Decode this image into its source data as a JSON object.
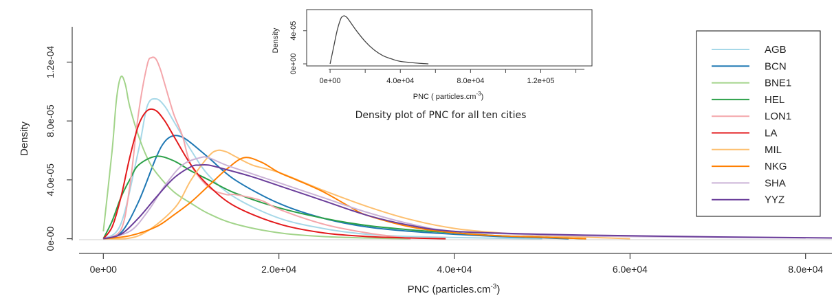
{
  "chart_data": [
    {
      "type": "line",
      "xlabel": "PNC (particles.cm",
      "xlabel_sup": "-3",
      "xlabel_end": ")",
      "ylabel": "Density",
      "xlim": [
        -3000,
        83000
      ],
      "ylim": [
        -1e-05,
        0.000144
      ],
      "xticks": [
        0,
        20000,
        40000,
        60000,
        80000
      ],
      "xtick_labels": [
        "0e+00",
        "2.0e+04",
        "4.0e+04",
        "6.0e+04",
        "8.0e+04"
      ],
      "yticks": [
        0,
        4e-05,
        8e-05,
        0.00012
      ],
      "ytick_labels": [
        "0e-00",
        "4.0e-05",
        "8.0e-05",
        "1.2e-04"
      ],
      "legend_position": "right",
      "series": [
        {
          "name": "AGB",
          "color": "#a6d8e8",
          "x": [
            0,
            2000,
            4000,
            5000,
            6000,
            7000,
            8000,
            10000,
            12000,
            15000,
            20000,
            25000,
            30000,
            35000,
            40000,
            45000,
            50000
          ],
          "values": [
            0,
            1e-05,
            6e-05,
            9e-05,
            9.5e-05,
            9e-05,
            8e-05,
            6e-05,
            4.3e-05,
            2.8e-05,
            1.4e-05,
            7e-06,
            3e-06,
            1.5e-06,
            8e-07,
            3e-07,
            0
          ]
        },
        {
          "name": "BCN",
          "color": "#1f78b4",
          "x": [
            0,
            2000,
            4000,
            6000,
            7000,
            8000,
            9000,
            10000,
            12000,
            15000,
            20000,
            25000,
            30000,
            35000,
            40000,
            45000,
            50000,
            53000
          ],
          "values": [
            0,
            4e-06,
            2.5e-05,
            5.5e-05,
            6.6e-05,
            7e-05,
            6.9e-05,
            6.5e-05,
            5.5e-05,
            4e-05,
            2.4e-05,
            1.4e-05,
            8e-06,
            5e-06,
            3e-06,
            1.5e-06,
            6e-07,
            0
          ]
        },
        {
          "name": "BNE1",
          "color": "#a2d48a",
          "x": [
            0,
            1000,
            1500,
            2000,
            2500,
            3000,
            4000,
            5000,
            6000,
            8000,
            10000,
            12000,
            15000,
            20000,
            25000,
            30000,
            35000
          ],
          "values": [
            5e-06,
            6e-05,
            9.5e-05,
            0.00011,
            0.000105,
            9e-05,
            7e-05,
            5.5e-05,
            4.5e-05,
            3.2e-05,
            2.4e-05,
            1.7e-05,
            1e-05,
            4e-06,
            1.5e-06,
            5e-07,
            0
          ]
        },
        {
          "name": "HEL",
          "color": "#2ba048",
          "x": [
            0,
            1000,
            2000,
            3000,
            4000,
            6000,
            8000,
            10000,
            12000,
            15000,
            20000,
            25000,
            30000,
            35000,
            40000,
            45000,
            50000,
            55000
          ],
          "values": [
            0,
            1.2e-05,
            2.8e-05,
            4e-05,
            5e-05,
            5.6e-05,
            5.3e-05,
            4.6e-05,
            4e-05,
            3.1e-05,
            2.1e-05,
            1.4e-05,
            9e-06,
            6e-06,
            4e-06,
            2e-06,
            1e-06,
            0
          ]
        },
        {
          "name": "LON1",
          "color": "#f4a6ab",
          "x": [
            0,
            2000,
            3000,
            4000,
            5000,
            5500,
            6000,
            6500,
            7000,
            8000,
            9000,
            10000,
            12000,
            14000,
            15000,
            18000,
            20000,
            25000,
            30000,
            35000
          ],
          "values": [
            0,
            6e-06,
            3.5e-05,
            8.5e-05,
            0.000118,
            0.000123,
            0.000122,
            0.000115,
            0.000105,
            8.5e-05,
            7e-05,
            5e-05,
            3.5e-05,
            3e-05,
            3e-05,
            2.6e-05,
            2e-05,
            1e-05,
            4e-06,
            0
          ]
        },
        {
          "name": "LA",
          "color": "#e31a1c",
          "x": [
            0,
            1000,
            2000,
            3000,
            4000,
            5000,
            6000,
            7000,
            8000,
            10000,
            12000,
            15000,
            20000,
            25000,
            30000,
            35000,
            39000
          ],
          "values": [
            0,
            8e-06,
            2.8e-05,
            5.5e-05,
            7.7e-05,
            8.7e-05,
            8.7e-05,
            8e-05,
            7e-05,
            5e-05,
            3.6e-05,
            2.2e-05,
            1e-05,
            4e-06,
            1.5e-06,
            5e-07,
            0
          ]
        },
        {
          "name": "MIL",
          "color": "#fdbf6f",
          "x": [
            0,
            4000,
            8000,
            10000,
            12000,
            13000,
            14000,
            15000,
            17000,
            20000,
            25000,
            30000,
            35000,
            40000,
            45000,
            50000,
            55000,
            60000
          ],
          "values": [
            0,
            2e-06,
            2e-05,
            4e-05,
            5.6e-05,
            6e-05,
            5.9e-05,
            5.6e-05,
            5e-05,
            4.5e-05,
            3.3e-05,
            2.2e-05,
            1.3e-05,
            7e-06,
            4e-06,
            2e-06,
            1e-06,
            0
          ]
        },
        {
          "name": "NKG",
          "color": "#ff7f00",
          "x": [
            0,
            3000,
            6000,
            8000,
            10000,
            12000,
            14000,
            16000,
            18000,
            20000,
            22000,
            25000,
            28000,
            30000,
            35000,
            40000,
            45000,
            50000,
            55000
          ],
          "values": [
            0,
            2e-06,
            8e-06,
            1.6e-05,
            2.5e-05,
            3.6e-05,
            4.7e-05,
            5.5e-05,
            5.2e-05,
            4.5e-05,
            4e-05,
            3.2e-05,
            2.2e-05,
            1.6e-05,
            8e-06,
            4e-06,
            2e-06,
            1e-06,
            0
          ]
        },
        {
          "name": "SHA",
          "color": "#cab2d6",
          "x": [
            0,
            3000,
            5000,
            7000,
            9000,
            11000,
            12000,
            14000,
            17000,
            20000,
            25000,
            30000,
            35000,
            40000,
            50000,
            60000,
            70000,
            80000
          ],
          "values": [
            0,
            5e-06,
            1.8e-05,
            3.6e-05,
            5e-05,
            5.5e-05,
            5.5e-05,
            5e-05,
            4.4e-05,
            3.8e-05,
            2.8e-05,
            1.8e-05,
            1e-05,
            5e-06,
            2.5e-06,
            1.5e-06,
            1e-06,
            5e-07
          ]
        },
        {
          "name": "YYZ",
          "color": "#6a3d9a",
          "x": [
            0,
            2000,
            4000,
            6000,
            8000,
            10000,
            11000,
            12000,
            14000,
            17000,
            20000,
            25000,
            30000,
            35000,
            40000,
            50000,
            60000,
            70000,
            83000
          ],
          "values": [
            0,
            3e-06,
            1.4e-05,
            2.8e-05,
            4.1e-05,
            4.9e-05,
            5e-05,
            5e-05,
            4.7e-05,
            4.2e-05,
            3.6e-05,
            2.6e-05,
            1.6e-05,
            9e-06,
            5e-06,
            3e-06,
            2e-06,
            1.2e-06,
            5e-07
          ]
        }
      ]
    },
    {
      "type": "line",
      "title": "Density plot of PNC for all ten cities",
      "xlabel": "PNC ( particles.cm",
      "xlabel_sup": "-3",
      "xlabel_end": ")",
      "ylabel": "Density",
      "xlim": [
        -2000,
        148000
      ],
      "ylim": [
        0,
        6.3e-05
      ],
      "xticks": [
        0,
        40000,
        80000,
        120000
      ],
      "xtick_labels": [
        "0e+00",
        "4.0e+04",
        "8.0e+04",
        "1.2e+05"
      ],
      "yticks": [
        0,
        4e-05
      ],
      "ytick_labels": [
        "0e+00",
        "4e-05"
      ],
      "series": [
        {
          "color": "#444444",
          "x": [
            0,
            2000,
            4000,
            6000,
            7000,
            8000,
            9000,
            10000,
            12000,
            15000,
            20000,
            25000,
            30000,
            35000,
            40000,
            50000,
            56000
          ],
          "values": [
            0,
            2e-05,
            4e-05,
            5.4e-05,
            5.7e-05,
            5.8e-05,
            5.7e-05,
            5.5e-05,
            4.9e-05,
            4e-05,
            2.7e-05,
            1.7e-05,
            1e-05,
            6e-06,
            3e-06,
            8e-07,
            0
          ]
        }
      ]
    }
  ]
}
